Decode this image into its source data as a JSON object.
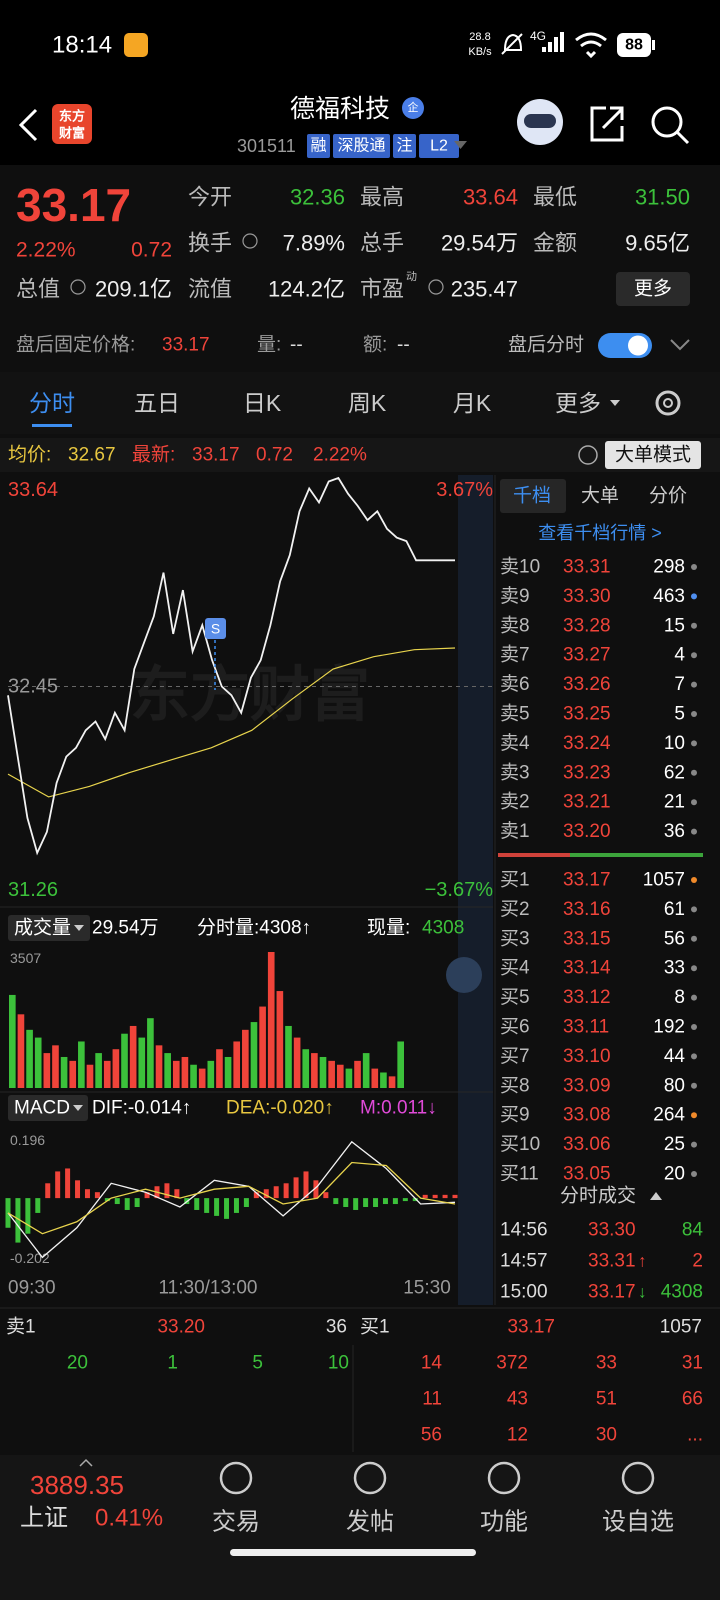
{
  "status_bar": {
    "time": "18:14",
    "net_speed": "28.8",
    "net_unit": "KB/s",
    "network": "4G",
    "battery": "88"
  },
  "header": {
    "logo": [
      "东方",
      "财富"
    ],
    "title": "德福科技",
    "badge": "企",
    "code": "301511",
    "tags": [
      "融",
      "深股通",
      "注",
      "L2"
    ]
  },
  "quote": {
    "price": "33.17",
    "change_pct": "2.22%",
    "change": "0.72",
    "fields": [
      {
        "label": "今开",
        "value": "32.36",
        "color": "green"
      },
      {
        "label": "最高",
        "value": "33.64",
        "color": "red"
      },
      {
        "label": "最低",
        "value": "31.50",
        "color": "green"
      },
      {
        "label": "换手",
        "value": "7.89%",
        "color": "white"
      },
      {
        "label": "总手",
        "value": "29.54万",
        "color": "white"
      },
      {
        "label": "金额",
        "value": "9.65亿",
        "color": "white"
      },
      {
        "label": "总值",
        "value": "209.1亿",
        "color": "white"
      },
      {
        "label": "流值",
        "value": "124.2亿",
        "color": "white"
      },
      {
        "label": "市盈",
        "sup": "动",
        "value": "235.47",
        "color": "white"
      }
    ],
    "more_button": "更多"
  },
  "after_hours": {
    "label": "盘后固定价格:",
    "price": "33.17",
    "volume_label": "量:",
    "volume": "--",
    "amount_label": "额:",
    "amount": "--",
    "toggle_label": "盘后分时"
  },
  "tabs": [
    "分时",
    "五日",
    "日K",
    "周K",
    "月K",
    "更多"
  ],
  "info_bar": {
    "avg_label": "均价:",
    "avg": "32.67",
    "latest_label": "最新:",
    "latest": "33.17",
    "change": "0.72",
    "change_pct": "2.22%",
    "mode_button": "大单模式"
  },
  "intraday": {
    "ylim": [
      31.26,
      33.64
    ],
    "yticks": [
      33.64,
      32.45,
      31.26
    ],
    "pct_labels": [
      "3.67%",
      "−3.67%"
    ],
    "marker": "S",
    "watermark": "东方财富",
    "price": [
      32.4,
      32.05,
      31.7,
      31.5,
      31.62,
      31.9,
      32.05,
      32.1,
      32.2,
      32.25,
      32.15,
      32.3,
      32.2,
      32.55,
      32.7,
      32.85,
      33.1,
      32.75,
      33.0,
      32.65,
      32.8,
      32.6,
      32.45,
      32.4,
      32.3,
      32.5,
      32.6,
      32.8,
      33.05,
      33.2,
      33.45,
      33.58,
      33.5,
      33.62,
      33.64,
      33.55,
      33.48,
      33.4,
      33.45,
      33.35,
      33.3,
      33.28,
      33.17,
      33.17,
      33.17,
      33.17,
      33.17
    ],
    "avg": [
      31.95,
      31.82,
      31.88,
      31.96,
      32.03,
      32.1,
      32.2,
      32.38,
      32.55,
      32.62,
      32.66,
      32.67
    ]
  },
  "volume": {
    "selector": "成交量",
    "total": "29.54万",
    "tick_label": "分时量:4308↑",
    "current_label": "现量:",
    "current": "4308",
    "ylim": [
      0,
      3507
    ],
    "yticks": [
      3507
    ],
    "values": [
      2400,
      1900,
      1500,
      1300,
      900,
      1100,
      800,
      700,
      1200,
      600,
      900,
      700,
      1000,
      1400,
      1600,
      1300,
      1800,
      1100,
      900,
      700,
      800,
      600,
      500,
      700,
      1000,
      800,
      1200,
      1500,
      1700,
      2100,
      3507,
      2500,
      1600,
      1300,
      1000,
      900,
      800,
      700,
      600,
      500,
      700,
      900,
      500,
      400,
      300,
      1200
    ],
    "colors": [
      "green",
      "red",
      "green",
      "green",
      "red",
      "red",
      "green",
      "red",
      "green",
      "red",
      "green",
      "red",
      "red",
      "green",
      "red",
      "green",
      "green",
      "red",
      "green",
      "red",
      "red",
      "green",
      "red",
      "green",
      "red",
      "green",
      "red",
      "red",
      "green",
      "red",
      "red",
      "red",
      "green",
      "red",
      "green",
      "red",
      "green",
      "red",
      "red",
      "green",
      "red",
      "green",
      "red",
      "green",
      "red",
      "green"
    ]
  },
  "macd": {
    "name": "MACD",
    "dif_label": "DIF:-0.014↑",
    "dea_label": "DEA:-0.020↑",
    "m_label": "M:0.011↓",
    "ylim": [
      -0.202,
      0.196
    ],
    "yticks": [
      0.196,
      -0.202
    ],
    "values": [
      -0.1,
      -0.15,
      -0.12,
      -0.05,
      0.05,
      0.09,
      0.1,
      0.06,
      0.03,
      0.02,
      -0.01,
      -0.02,
      -0.04,
      -0.03,
      0.02,
      0.04,
      0.05,
      0.03,
      -0.02,
      -0.04,
      -0.05,
      -0.06,
      -0.07,
      -0.05,
      -0.03,
      0.02,
      0.03,
      0.04,
      0.05,
      0.07,
      0.09,
      0.06,
      0.02,
      -0.02,
      -0.03,
      -0.04,
      -0.03,
      -0.03,
      -0.02,
      -0.02,
      -0.01,
      -0.01,
      0.011,
      0.011,
      0.011,
      0.011
    ],
    "dif": [
      -0.05,
      -0.2,
      -0.1,
      0.05,
      0.02,
      -0.03,
      0.06,
      0.04,
      -0.06,
      0.04,
      0.19,
      0.1,
      -0.02,
      -0.014
    ],
    "dea": [
      -0.05,
      -0.12,
      -0.08,
      0.0,
      0.03,
      0.0,
      0.03,
      0.04,
      -0.02,
      0.0,
      0.12,
      0.11,
      0.0,
      -0.02
    ]
  },
  "time_axis": [
    "09:30",
    "11:30/13:00",
    "15:30"
  ],
  "order_book": {
    "tabs": [
      "千档",
      "大单",
      "分价"
    ],
    "link": "查看千档行情 >",
    "asks": [
      {
        "label": "卖10",
        "price": "33.31",
        "volume": "298",
        "dot": "gray"
      },
      {
        "label": "卖9",
        "price": "33.30",
        "volume": "463",
        "dot": "blue"
      },
      {
        "label": "卖8",
        "price": "33.28",
        "volume": "15",
        "dot": "gray"
      },
      {
        "label": "卖7",
        "price": "33.27",
        "volume": "4",
        "dot": "gray"
      },
      {
        "label": "卖6",
        "price": "33.26",
        "volume": "7",
        "dot": "gray"
      },
      {
        "label": "卖5",
        "price": "33.25",
        "volume": "5",
        "dot": "gray"
      },
      {
        "label": "卖4",
        "price": "33.24",
        "volume": "10",
        "dot": "gray"
      },
      {
        "label": "卖3",
        "price": "33.23",
        "volume": "62",
        "dot": "gray"
      },
      {
        "label": "卖2",
        "price": "33.21",
        "volume": "21",
        "dot": "gray"
      },
      {
        "label": "卖1",
        "price": "33.20",
        "volume": "36",
        "dot": "gray"
      }
    ],
    "bids": [
      {
        "label": "买1",
        "price": "33.17",
        "volume": "1057",
        "dot": "orange"
      },
      {
        "label": "买2",
        "price": "33.16",
        "volume": "61",
        "dot": "gray"
      },
      {
        "label": "买3",
        "price": "33.15",
        "volume": "56",
        "dot": "gray"
      },
      {
        "label": "买4",
        "price": "33.14",
        "volume": "33",
        "dot": "gray"
      },
      {
        "label": "买5",
        "price": "33.12",
        "volume": "8",
        "dot": "gray"
      },
      {
        "label": "买6",
        "price": "33.11",
        "volume": "192",
        "dot": "gray"
      },
      {
        "label": "买7",
        "price": "33.10",
        "volume": "44",
        "dot": "gray"
      },
      {
        "label": "买8",
        "price": "33.09",
        "volume": "80",
        "dot": "gray"
      },
      {
        "label": "买9",
        "price": "33.08",
        "volume": "264",
        "dot": "orange"
      },
      {
        "label": "买10",
        "price": "33.06",
        "volume": "25",
        "dot": "gray"
      },
      {
        "label": "买11",
        "price": "33.05",
        "volume": "20",
        "dot": "gray"
      }
    ]
  },
  "trades": {
    "title": "分时成交",
    "rows": [
      {
        "time": "14:56",
        "price": "33.30",
        "arrow": "",
        "volume": "84",
        "dir": "down"
      },
      {
        "time": "14:57",
        "price": "33.31",
        "arrow": "↑",
        "volume": "2",
        "dir": "up"
      },
      {
        "time": "15:00",
        "price": "33.17",
        "arrow": "↓",
        "volume": "4308",
        "dir": "down"
      }
    ]
  },
  "bottom": {
    "ask": {
      "label": "卖1",
      "price": "33.20",
      "volume": "36",
      "orders": [
        "20",
        "1",
        "5",
        "10"
      ]
    },
    "bid": {
      "label": "买1",
      "price": "33.17",
      "volume": "1057",
      "orders": [
        "14",
        "372",
        "33",
        "31",
        "11",
        "43",
        "51",
        "66",
        "56",
        "12",
        "30",
        "..."
      ]
    }
  },
  "index": {
    "value": "3889.35",
    "name": "上证",
    "change_pct": "0.41%"
  },
  "nav": [
    "交易",
    "发帖",
    "功能",
    "设自选"
  ]
}
